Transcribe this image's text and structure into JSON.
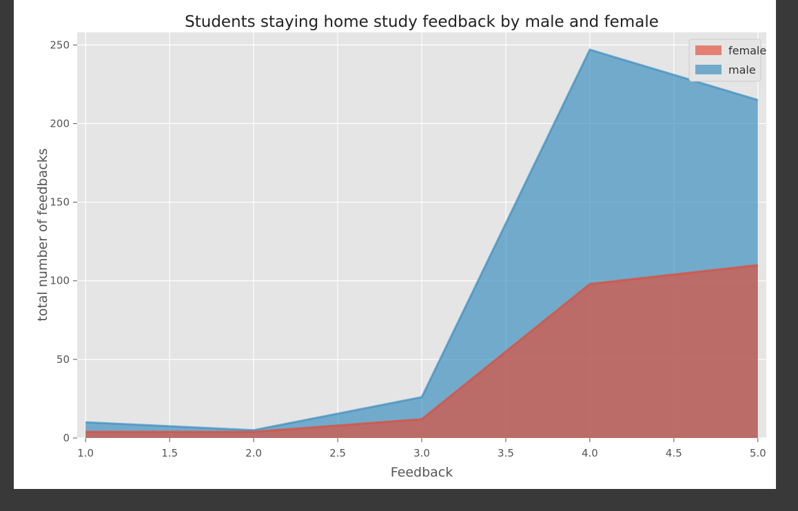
{
  "chart_data": {
    "type": "area",
    "title": "Students staying home study feedback by male and female",
    "xlabel": "Feedback",
    "ylabel": "total number of feedbacks",
    "x": [
      1.0,
      2.0,
      3.0,
      4.0,
      5.0
    ],
    "xlim": [
      0.95,
      5.05
    ],
    "ylim": [
      0,
      258
    ],
    "xticks": [
      "1.0",
      "1.5",
      "2.0",
      "2.5",
      "3.0",
      "3.5",
      "4.0",
      "4.5",
      "5.0"
    ],
    "yticks": [
      "0",
      "50",
      "100",
      "150",
      "200",
      "250"
    ],
    "grid": true,
    "legend_position": "top-right",
    "series": [
      {
        "name": "female",
        "values": [
          4,
          4,
          12,
          98,
          110
        ],
        "color": "#E24A33"
      },
      {
        "name": "male",
        "values": [
          10,
          5,
          26,
          247,
          215
        ],
        "color": "#348ABD"
      }
    ],
    "colors": {
      "plot_background": "#E5E5E5",
      "grid": "#FFFFFF",
      "text": "#555555"
    }
  }
}
